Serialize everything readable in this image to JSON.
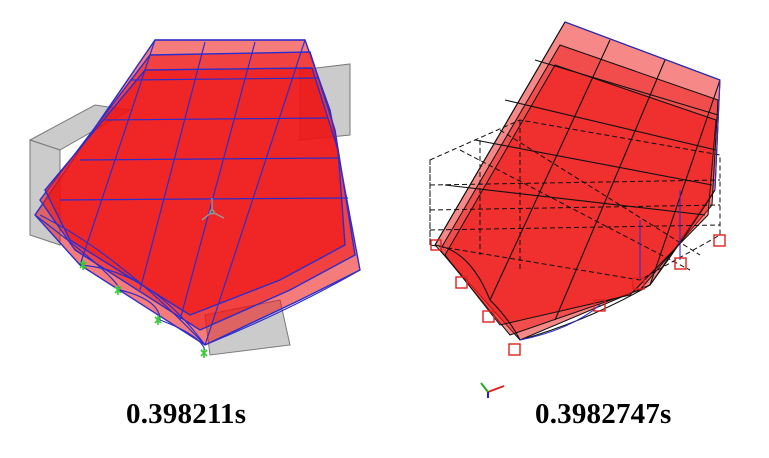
{
  "captions": {
    "left": "0.398211s",
    "right": "0.3982747s"
  },
  "colors": {
    "slab_fill": "#ee1111",
    "frame_line": "#2d2dcc",
    "undeformed_gray": "#a8a8a8",
    "dashed_frame": "#111111",
    "support_green": "#33cc33",
    "support_red": "#e02020",
    "axis_x": "#e02020",
    "axis_y": "#22aa22",
    "axis_z": "#2222cc"
  },
  "icons": {
    "left_model": "deformed-frame-building-icon",
    "right_model": "deformed-frame-building-icon",
    "fixed_support": "fixed-support-icon",
    "pinned_support": "pinned-support-icon",
    "triad": "axis-triad-icon"
  }
}
